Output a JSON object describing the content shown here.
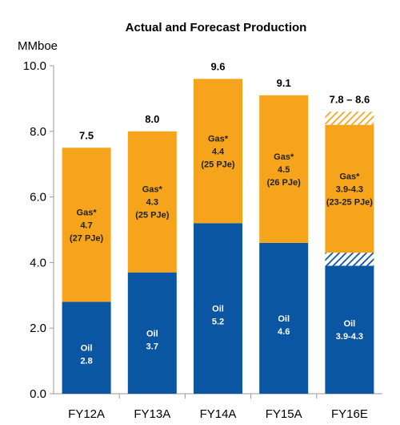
{
  "chart_data": {
    "type": "bar",
    "stacked": true,
    "title": "Actual and Forecast Production",
    "ylabel": "MMboe",
    "xlabel": "",
    "ylim": [
      0,
      10
    ],
    "yticks": [
      "0.0",
      "2.0",
      "4.0",
      "6.0",
      "8.0",
      "10.0"
    ],
    "grid": false,
    "categories": [
      "FY12A",
      "FY13A",
      "FY14A",
      "FY15A",
      "FY16E"
    ],
    "totals": [
      "7.5",
      "8.0",
      "9.6",
      "9.1",
      "7.8 – 8.6"
    ],
    "series": [
      {
        "values": [
          2.8,
          3.7,
          5.2,
          4.6,
          3.9
        ],
        "range_upper": [
          null,
          null,
          null,
          null,
          4.3
        ],
        "color": "#0a56a3",
        "labels": [
          [
            "Oil",
            "2.8"
          ],
          [
            "Oil",
            "3.7"
          ],
          [
            "Oil",
            "5.2"
          ],
          [
            "Oil",
            "4.6"
          ],
          [
            "Oil",
            "3.9-4.3"
          ]
        ]
      },
      {
        "values": [
          4.7,
          4.3,
          4.4,
          4.5,
          3.9
        ],
        "range_upper": [
          null,
          null,
          null,
          null,
          4.3
        ],
        "color": "#f6a41c",
        "labels": [
          [
            "Gas*",
            "4.7",
            "(27 PJe)"
          ],
          [
            "Gas*",
            "4.3",
            "(25 PJe)"
          ],
          [
            "Gas*",
            "4.4",
            "(25 PJe)"
          ],
          [
            "Gas*",
            "4.5",
            "(26 PJe)"
          ],
          [
            "Gas*",
            "3.9-4.3",
            "(23-25 PJe)"
          ]
        ]
      }
    ]
  }
}
